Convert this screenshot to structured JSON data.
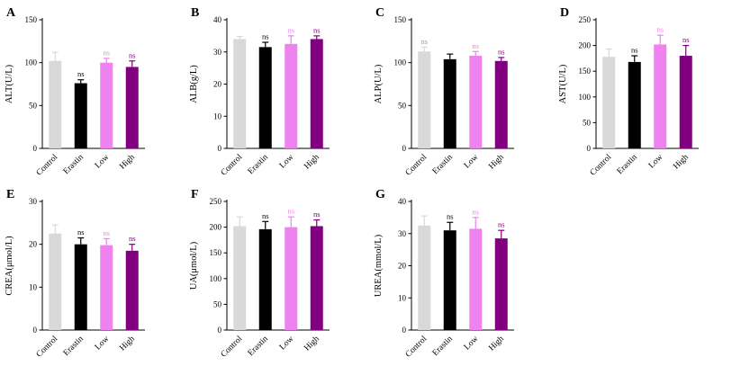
{
  "figure": {
    "background": "#ffffff",
    "group_colors": {
      "Control": "#d9d9d9",
      "Erastin": "#000000",
      "Low": "#ee82ee",
      "High": "#800080"
    }
  },
  "chart_data": [
    {
      "type": "bar",
      "panel": "A",
      "ylabel": "ALT(U/L)",
      "ylim": [
        0,
        150
      ],
      "yticks": [
        0,
        50,
        100,
        150
      ],
      "categories": [
        "Control",
        "Erastin",
        "Low",
        "High"
      ],
      "values": [
        102,
        76,
        100,
        95
      ],
      "errors": [
        10,
        4,
        5,
        7
      ],
      "annotations": [
        "",
        "ns",
        "ns",
        "ns"
      ],
      "colors": [
        "#d9d9d9",
        "#000000",
        "#ee82ee",
        "#800080"
      ],
      "legend": "none",
      "grid": false
    },
    {
      "type": "bar",
      "panel": "B",
      "ylabel": "ALB(g/L)",
      "ylim": [
        0,
        40
      ],
      "yticks": [
        0,
        10,
        20,
        30,
        40
      ],
      "categories": [
        "Control",
        "Erastin",
        "Low",
        "High"
      ],
      "values": [
        34,
        31.5,
        32.5,
        34
      ],
      "errors": [
        0.8,
        1.5,
        2.5,
        1
      ],
      "annotations": [
        "",
        "ns",
        "ns",
        "ns"
      ],
      "colors": [
        "#d9d9d9",
        "#000000",
        "#ee82ee",
        "#800080"
      ],
      "legend": "none",
      "grid": false
    },
    {
      "type": "bar",
      "panel": "C",
      "ylabel": "ALP(U/L)",
      "ylim": [
        0,
        150
      ],
      "yticks": [
        0,
        50,
        100,
        150
      ],
      "categories": [
        "Control",
        "Erastin",
        "Low",
        "High"
      ],
      "values": [
        113,
        104,
        108,
        102
      ],
      "errors": [
        5,
        6,
        5,
        4
      ],
      "annotations": [
        "ns",
        "",
        "ns",
        "ns"
      ],
      "colors": [
        "#d9d9d9",
        "#000000",
        "#ee82ee",
        "#800080"
      ],
      "legend": "none",
      "grid": false
    },
    {
      "type": "bar",
      "panel": "D",
      "ylabel": "AST(U/L)",
      "ylim": [
        0,
        250
      ],
      "yticks": [
        0,
        50,
        100,
        150,
        200,
        250
      ],
      "categories": [
        "Control",
        "Erastin",
        "Low",
        "High"
      ],
      "values": [
        178,
        168,
        202,
        180
      ],
      "errors": [
        15,
        12,
        18,
        20
      ],
      "annotations": [
        "",
        "ns",
        "ns",
        "ns"
      ],
      "colors": [
        "#d9d9d9",
        "#000000",
        "#ee82ee",
        "#800080"
      ],
      "legend": "none",
      "grid": false
    },
    {
      "type": "bar",
      "panel": "E",
      "ylabel": "CREA(μmol/L)",
      "ylim": [
        0,
        30
      ],
      "yticks": [
        0,
        10,
        20,
        30
      ],
      "categories": [
        "Control",
        "Erastin",
        "Low",
        "High"
      ],
      "values": [
        22.5,
        20,
        19.8,
        18.5
      ],
      "errors": [
        2,
        1.5,
        1.5,
        1.5
      ],
      "annotations": [
        "",
        "ns",
        "ns",
        "ns"
      ],
      "colors": [
        "#d9d9d9",
        "#000000",
        "#ee82ee",
        "#800080"
      ],
      "legend": "none",
      "grid": false
    },
    {
      "type": "bar",
      "panel": "F",
      "ylabel": "UA(μmol/L)",
      "ylim": [
        0,
        250
      ],
      "yticks": [
        0,
        50,
        100,
        150,
        200,
        250
      ],
      "categories": [
        "Control",
        "Erastin",
        "Low",
        "High"
      ],
      "values": [
        202,
        196,
        200,
        202
      ],
      "errors": [
        18,
        15,
        20,
        12
      ],
      "annotations": [
        "",
        "ns",
        "ns",
        "ns"
      ],
      "colors": [
        "#d9d9d9",
        "#000000",
        "#ee82ee",
        "#800080"
      ],
      "legend": "none",
      "grid": false
    },
    {
      "type": "bar",
      "panel": "G",
      "ylabel": "UREA(mmol/L)",
      "ylim": [
        0,
        40
      ],
      "yticks": [
        0,
        10,
        20,
        30,
        40
      ],
      "categories": [
        "Control",
        "Erastin",
        "Low",
        "High"
      ],
      "values": [
        32.5,
        31,
        31.5,
        28.5
      ],
      "errors": [
        3,
        2.5,
        3.5,
        2.5
      ],
      "annotations": [
        "",
        "ns",
        "ns",
        "ns"
      ],
      "colors": [
        "#d9d9d9",
        "#000000",
        "#ee82ee",
        "#800080"
      ],
      "legend": "none",
      "grid": false
    }
  ]
}
